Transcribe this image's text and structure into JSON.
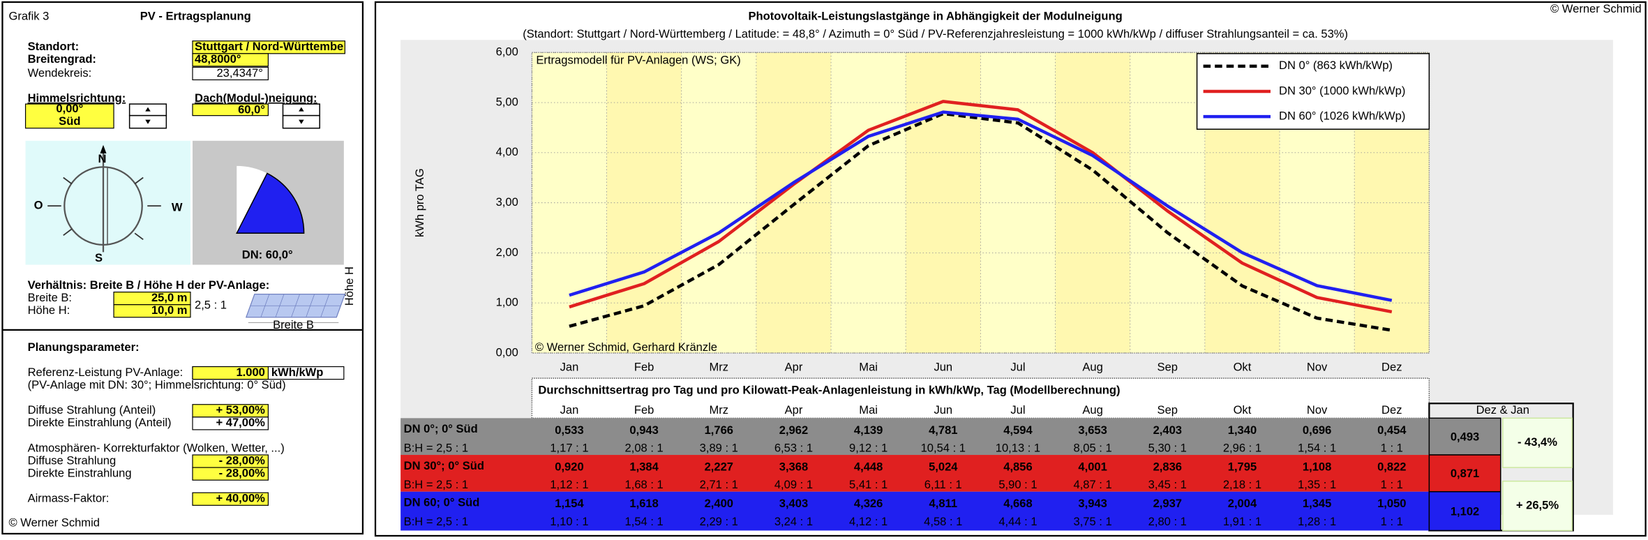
{
  "chart_data": {
    "type": "line",
    "title": "Photovoltaik-Leistungslastgänge in Abhängigkeit der Modulneigung",
    "subtitle": "(Standort: Stuttgart / Nord-Württemberg  /  Latitude: = 48,8°  /  Azimuth = 0° Süd  /  PV-Referenzjahresleistung = 1000 kWh/kWp  /   diffuser Strahlungsanteil = ca. 53%)",
    "copyright": "© Werner Schmid",
    "ylabel": "kWh pro TAG",
    "annotations": [
      "Ertragsmodell für PV-Anlagen (WS; GK)",
      "© Werner Schmid, Gerhard Kränzle"
    ],
    "categories": [
      "Jan",
      "Feb",
      "Mrz",
      "Apr",
      "Mai",
      "Jun",
      "Jul",
      "Aug",
      "Sep",
      "Okt",
      "Nov",
      "Dez"
    ],
    "series": [
      {
        "name": "DN 0° (863 kWh/kWp)",
        "color": "#000000",
        "dashed": true,
        "values": [
          0.533,
          0.943,
          1.766,
          2.962,
          4.139,
          4.781,
          4.594,
          3.653,
          2.403,
          1.34,
          0.696,
          0.454
        ]
      },
      {
        "name": "DN 30° (1000 kWh/kWp)",
        "color": "#e02020",
        "dashed": false,
        "values": [
          0.92,
          1.384,
          2.227,
          3.368,
          4.448,
          5.024,
          4.856,
          4.001,
          2.836,
          1.795,
          1.108,
          0.822
        ]
      },
      {
        "name": "DN 60° (1026 kWh/kWp)",
        "color": "#2020f0",
        "dashed": false,
        "values": [
          1.154,
          1.618,
          2.4,
          3.403,
          4.326,
          4.811,
          4.668,
          3.943,
          2.937,
          2.004,
          1.345,
          1.05
        ]
      }
    ],
    "ylim": [
      0,
      6
    ],
    "yticks": [
      {
        "value": 0,
        "label": "0,00"
      },
      {
        "value": 1,
        "label": "1,00"
      },
      {
        "value": 2,
        "label": "2,00"
      },
      {
        "value": 3,
        "label": "3,00"
      },
      {
        "value": 4,
        "label": "4,00"
      },
      {
        "value": 5,
        "label": "5,00"
      },
      {
        "value": 6,
        "label": "6,00"
      }
    ],
    "grid": true,
    "legend": "top-right"
  },
  "table": {
    "title": "Durchschnittsertrag pro Tag und pro Kilowatt-Peak-Anlagenleistung in kWh/kWp, Tag   (Modellberechnung)",
    "summary_header": "Dez & Jan",
    "ratio_label": "B:H = 2,5 : 1",
    "rows": [
      {
        "label": "DN 0°; 0° Süd",
        "color": "#8c8c8c",
        "values": [
          "0,533",
          "0,943",
          "1,766",
          "2,962",
          "4,139",
          "4,781",
          "4,594",
          "3,653",
          "2,403",
          "1,340",
          "0,696",
          "0,454"
        ],
        "ratios": [
          "1,17 : 1",
          "2,08 : 1",
          "3,89 : 1",
          "6,53 : 1",
          "9,12 : 1",
          "10,54 : 1",
          "10,13 : 1",
          "8,05 : 1",
          "5,30 : 1",
          "2,96 : 1",
          "1,54 : 1",
          "1 : 1"
        ],
        "summary": "0,493"
      },
      {
        "label": "DN 30°; 0° Süd",
        "color": "#e02020",
        "values": [
          "0,920",
          "1,384",
          "2,227",
          "3,368",
          "4,448",
          "5,024",
          "4,856",
          "4,001",
          "2,836",
          "1,795",
          "1,108",
          "0,822"
        ],
        "ratios": [
          "1,12 : 1",
          "1,68 : 1",
          "2,71 : 1",
          "4,09 : 1",
          "5,41 : 1",
          "6,11 : 1",
          "5,90 : 1",
          "4,87 : 1",
          "3,45 : 1",
          "2,18 : 1",
          "1,35 : 1",
          "1 : 1"
        ],
        "summary": "0,871"
      },
      {
        "label": "DN 60; 0° Süd",
        "color": "#2020f0",
        "values": [
          "1,154",
          "1,618",
          "2,400",
          "3,403",
          "4,326",
          "4,811",
          "4,668",
          "3,943",
          "2,937",
          "2,004",
          "1,345",
          "1,050"
        ],
        "ratios": [
          "1,10 : 1",
          "1,54 : 1",
          "2,29 : 1",
          "3,24 : 1",
          "4,12 : 1",
          "4,58 : 1",
          "4,44 : 1",
          "3,75 : 1",
          "2,80 : 1",
          "1,91 : 1",
          "1,28 : 1",
          "1 : 1"
        ],
        "summary": "1,102"
      }
    ],
    "changes": [
      {
        "text": "- 43,4%",
        "color": "#e02020"
      },
      {
        "text": "+ 26,5%",
        "color": "#40a020"
      }
    ]
  },
  "panel": {
    "grafik": "Grafik 3",
    "title": "PV - Ertragsplanung",
    "standort_label": "Standort:",
    "standort": "Stuttgart / Nord-Württembe",
    "breitengrad_label": "Breitengrad:",
    "breitengrad": "48,8000°",
    "wendekreis_label": "Wendekreis:",
    "wendekreis": "23,4347°",
    "himmel_label": "Himmelsrichtung:",
    "himmel_deg": "0,00°",
    "himmel_dir": "Süd",
    "dach_label": "Dach(Modul-)neigung:",
    "dach": "60,0°",
    "compass": [
      "N",
      "O",
      "W",
      "S"
    ],
    "dn": "DN:  60,0°",
    "verhaeltnis": "Verhältnis:  Breite B / Höhe H  der PV-Anlage:",
    "breite_label": "Breite B:",
    "breite": "25,0 m",
    "hoehe_label": "Höhe H:",
    "hoehe": "10,0 m",
    "ratio": "2,5 : 1",
    "image_labels": [
      "Breite B",
      "Höhe H"
    ],
    "params_title": "Planungsparameter:",
    "referenz_label": "Referenz-Leistung PV-Anlage:",
    "referenz": "1.000",
    "referenz_unit": "kWh/kWp",
    "referenz_note": "(PV-Anlage mit  DN: 30°; Himmelsrichtung: 0° Süd)",
    "diffus_label": "Diffuse Strahlung (Anteil)",
    "diffus": "+ 53,00%",
    "direkt_label": "Direkte Einstrahlung (Anteil)",
    "direkt": "+ 47,00%",
    "atmos_label": "Atmosphären- Korrekturfaktor (Wolken, Wetter, ...)",
    "atmos_diffus_label": "Diffuse Strahlung",
    "atmos_diffus": "- 28,00%",
    "atmos_direkt_label": "Direkte Einstrahlung",
    "atmos_direkt": "- 28,00%",
    "airmass_label": "Airmass-Faktor:",
    "airmass": "+ 40,00%",
    "footer": "© Werner Schmid"
  }
}
